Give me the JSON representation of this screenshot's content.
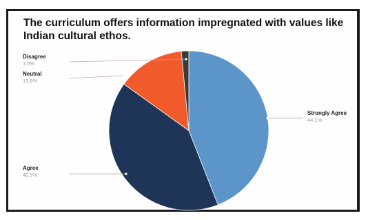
{
  "chart_data": {
    "type": "pie",
    "title": "The curriculum offers information impregnated with values like Indian cultural ethos.",
    "slices": [
      {
        "label": "Strongly Agree",
        "value": 44.1,
        "value_label": "44.1%",
        "color": "#5b95c9"
      },
      {
        "label": "Agree",
        "value": 40.9,
        "value_label": "40.9%",
        "color": "#1e3557"
      },
      {
        "label": "Neutral",
        "value": 13.6,
        "value_label": "13.6%",
        "color": "#f15a2b"
      },
      {
        "label": "Disagree",
        "value": 1.5,
        "value_label": "1.5%",
        "color": "#3a3a3a"
      }
    ],
    "legend_placement": "outside labels with leader lines"
  }
}
